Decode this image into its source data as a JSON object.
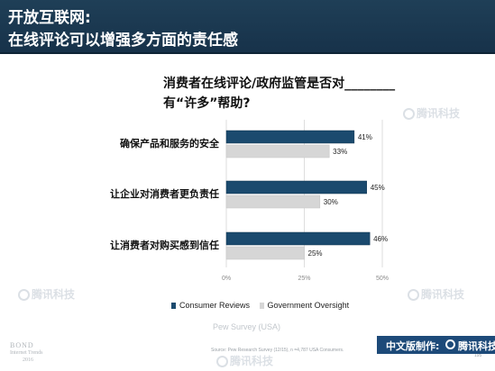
{
  "header": {
    "title_line1": "开放互联网:",
    "title_line2": "在线评论可以增强多方面的责任感"
  },
  "question": {
    "line1": "消费者在线评论/政府监管是否对________",
    "line2": "有“许多”帮助?"
  },
  "watermark": {
    "text": "腾讯科技"
  },
  "chart_data": {
    "type": "bar",
    "orientation": "horizontal",
    "categories": [
      "确保产品和服务的安全",
      "让企业对消费者更负责任",
      "让消费者对购买感到信任"
    ],
    "series": [
      {
        "name": "Consumer Reviews",
        "values": [
          41,
          45,
          46
        ],
        "labels": [
          "41%",
          "45%",
          "46%"
        ],
        "color": "#1b4a6e"
      },
      {
        "name": "Government Oversight",
        "values": [
          33,
          30,
          25
        ],
        "labels": [
          "33%",
          "30%",
          "25%"
        ],
        "color": "#d6d6d6"
      }
    ],
    "xlim": [
      0,
      50
    ],
    "xticks": [
      "0%",
      "25%",
      "50%"
    ],
    "grid": true,
    "legend": "bottom"
  },
  "source": {
    "survey": "Pew Survey (USA)",
    "note": "Source: Pew Research Survey (12/15), n =4,787 USA Consumers.",
    "page": "195"
  },
  "footer": {
    "bond_line1": "BOND",
    "bond_line2": "Internet Trends",
    "bond_line3": "2016",
    "brand_label": "中文版制作:",
    "brand_name": "腾讯科技"
  },
  "colors": {
    "header_bg": "#17324a",
    "consumer": "#1b4a6e",
    "government": "#d6d6d6",
    "brand_bar": "#1d4a79"
  }
}
